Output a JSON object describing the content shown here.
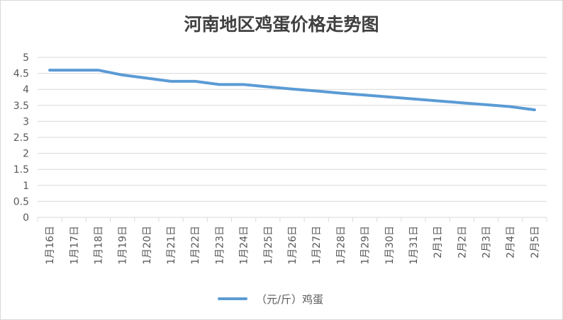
{
  "chart_data": {
    "type": "line",
    "title": "河南地区鸡蛋价格走势图",
    "categories": [
      "1月16日",
      "1月17日",
      "1月18日",
      "1月19日",
      "1月20日",
      "1月21日",
      "1月22日",
      "1月23日",
      "1月24日",
      "1月25日",
      "1月26日",
      "1月27日",
      "1月28日",
      "1月29日",
      "1月30日",
      "1月31日",
      "2月1日",
      "2月2日",
      "2月3日",
      "2月4日",
      "2月5日"
    ],
    "series": [
      {
        "name": "（元/斤）鸡蛋",
        "color": "#5b9bd5",
        "values": [
          4.6,
          4.6,
          4.6,
          4.45,
          4.35,
          4.25,
          4.25,
          4.15,
          4.15,
          4.08,
          4.01,
          3.95,
          3.88,
          3.82,
          3.76,
          3.7,
          3.64,
          3.58,
          3.52,
          3.46,
          3.36
        ]
      }
    ],
    "yticks": [
      "0",
      "0.5",
      "1",
      "1.5",
      "2",
      "2.5",
      "3",
      "3.5",
      "4",
      "4.5",
      "5"
    ],
    "ylim": [
      0,
      5
    ],
    "grid": true,
    "legend": "bottom"
  }
}
